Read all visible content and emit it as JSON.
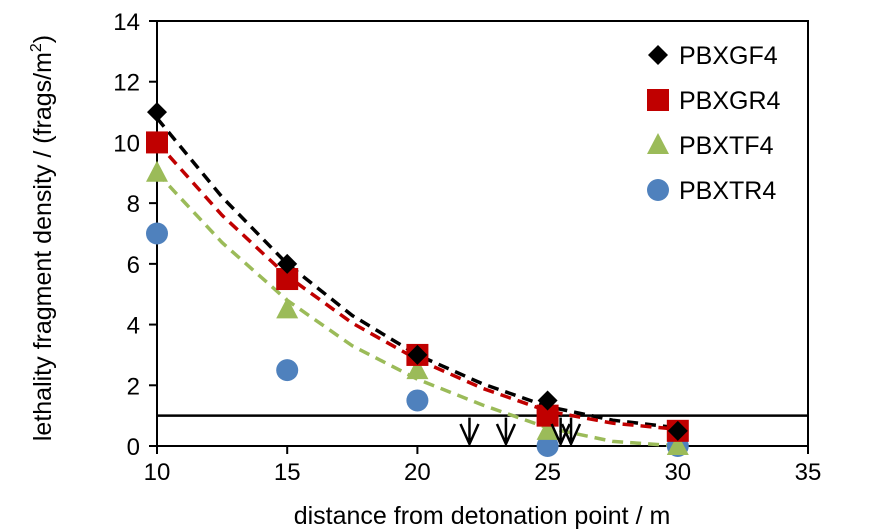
{
  "chart_data": {
    "type": "scatter",
    "xlabel": "distance from detonation point / m",
    "ylabel_main": "lethality fragment density / (frags/m",
    "ylabel_sup": "2",
    "ylabel_end": ")",
    "xlim": [
      10,
      35
    ],
    "ylim": [
      0,
      14
    ],
    "xticks": [
      10,
      15,
      20,
      25,
      30,
      35
    ],
    "yticks": [
      0,
      2,
      4,
      6,
      8,
      10,
      12,
      14
    ],
    "grid": false,
    "legend_position": "top-right",
    "series": [
      {
        "name": "PBXGF4",
        "marker": "diamond",
        "color": "#000000",
        "points": [
          [
            10,
            11
          ],
          [
            15,
            6
          ],
          [
            20,
            3
          ],
          [
            25,
            1.5
          ],
          [
            30,
            0.5
          ]
        ]
      },
      {
        "name": "PBXGR4",
        "marker": "square",
        "color": "#C00000",
        "points": [
          [
            10,
            10
          ],
          [
            15,
            5.5
          ],
          [
            20,
            3
          ],
          [
            25,
            1
          ],
          [
            30,
            0.5
          ]
        ]
      },
      {
        "name": "PBXTF4",
        "marker": "triangle",
        "color": "#9BBB59",
        "points": [
          [
            10,
            9
          ],
          [
            15,
            4.5
          ],
          [
            20,
            2.5
          ],
          [
            25,
            0.5
          ],
          [
            30,
            0
          ]
        ]
      },
      {
        "name": "PBXTR4",
        "marker": "circle",
        "color": "#4F81BD",
        "points": [
          [
            10,
            7
          ],
          [
            15,
            2.5
          ],
          [
            20,
            1.5
          ],
          [
            25,
            0
          ],
          [
            30,
            0
          ]
        ]
      }
    ],
    "trend_lines": [
      {
        "series": "PBXGF4",
        "color": "#000000",
        "points": [
          [
            10,
            10.8
          ],
          [
            12.5,
            8.2
          ],
          [
            15,
            6.0
          ],
          [
            17.5,
            4.3
          ],
          [
            20,
            3.0
          ],
          [
            22.5,
            2.05
          ],
          [
            25,
            1.3
          ],
          [
            27.5,
            0.85
          ],
          [
            30,
            0.6
          ]
        ]
      },
      {
        "series": "PBXGR4",
        "color": "#C00000",
        "points": [
          [
            10,
            10.0
          ],
          [
            12.5,
            7.6
          ],
          [
            15,
            5.6
          ],
          [
            17.5,
            4.05
          ],
          [
            20,
            2.85
          ],
          [
            22.5,
            1.9
          ],
          [
            25,
            1.15
          ],
          [
            27.5,
            0.75
          ],
          [
            30,
            0.55
          ]
        ]
      },
      {
        "series": "PBXTF4",
        "color": "#9BBB59",
        "points": [
          [
            10,
            9.0
          ],
          [
            12.5,
            6.7
          ],
          [
            15,
            4.8
          ],
          [
            17.5,
            3.3
          ],
          [
            20,
            2.2
          ],
          [
            22.5,
            1.35
          ],
          [
            25,
            0.6
          ],
          [
            27.5,
            0.15
          ],
          [
            30,
            0
          ]
        ]
      }
    ],
    "threshold_y": 1,
    "arrow_x": [
      22,
      23.4,
      25.5,
      25.9
    ]
  }
}
